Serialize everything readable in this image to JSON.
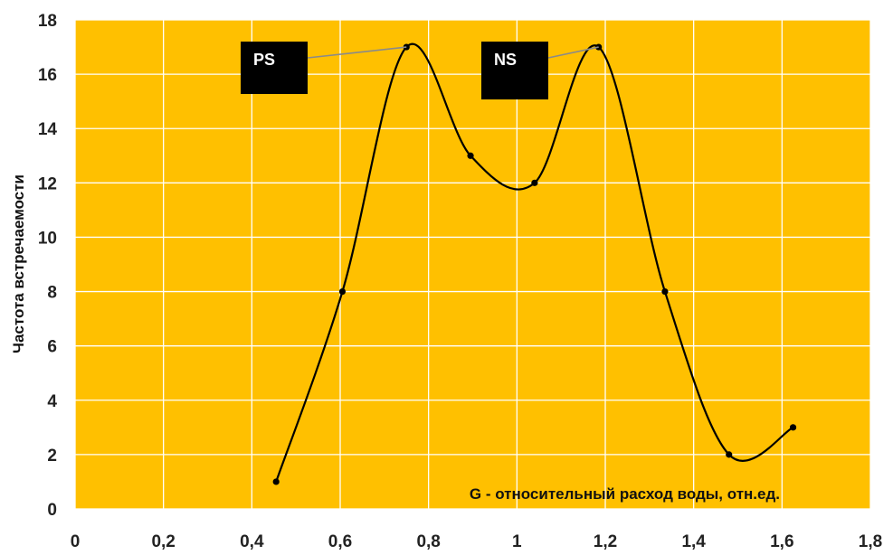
{
  "chart_data": {
    "type": "line",
    "smooth": true,
    "title": "",
    "xlabel": "G - относительный расход воды, отн.ед.",
    "ylabel": "Частота встречаемости",
    "xlim": [
      0,
      1.8
    ],
    "ylim": [
      0,
      18
    ],
    "x_ticks": [
      0,
      0.2,
      0.4,
      0.6,
      0.8,
      1,
      1.2,
      1.4,
      1.6,
      1.8
    ],
    "x_tick_labels": [
      "0",
      "0,2",
      "0,4",
      "0,6",
      "0,8",
      "1",
      "1,2",
      "1,4",
      "1,6",
      "1,8"
    ],
    "y_ticks": [
      0,
      2,
      4,
      6,
      8,
      10,
      12,
      14,
      16,
      18
    ],
    "y_tick_labels": [
      "0",
      "2",
      "4",
      "6",
      "8",
      "10",
      "12",
      "14",
      "16",
      "18"
    ],
    "grid": true,
    "legend": "none",
    "plot_background": "#FFC000",
    "grid_color": "#ffffff",
    "line_color": "#000000",
    "series": [
      {
        "x": [
          0.455,
          0.605,
          0.75,
          0.895,
          1.04,
          1.185,
          1.335,
          1.48,
          1.625
        ],
        "y": [
          1,
          8,
          17,
          13,
          12,
          17,
          8,
          2,
          3
        ]
      }
    ],
    "annotations": [
      {
        "text": "PS",
        "point_index": 2
      },
      {
        "text": "NS",
        "point_index": 5
      }
    ]
  }
}
